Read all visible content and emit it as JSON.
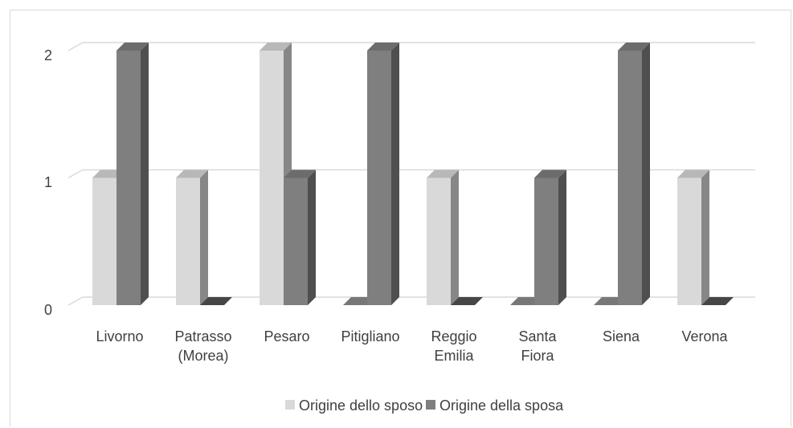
{
  "chart_data": {
    "type": "bar",
    "categories": [
      [
        "Livorno"
      ],
      [
        "Patrasso",
        "(Morea)"
      ],
      [
        "Pesaro"
      ],
      [
        "Pitigliano"
      ],
      [
        "Reggio",
        "Emilia"
      ],
      [
        "Santa",
        "Fiora"
      ],
      [
        "Siena"
      ],
      [
        "Verona"
      ]
    ],
    "series": [
      {
        "name": "Origine dello sposo",
        "values": [
          1,
          1,
          2,
          0,
          1,
          0,
          0,
          1
        ],
        "color": "#d9d9d9"
      },
      {
        "name": "Origine della sposa",
        "values": [
          2,
          0,
          1,
          2,
          0,
          1,
          2,
          0
        ],
        "color": "#7f7f7f"
      }
    ],
    "yticks": [
      "0",
      "1",
      "2"
    ],
    "ylim": [
      0,
      2
    ],
    "grid": true,
    "legend_position": "bottom",
    "style": "3d-clustered-column"
  }
}
